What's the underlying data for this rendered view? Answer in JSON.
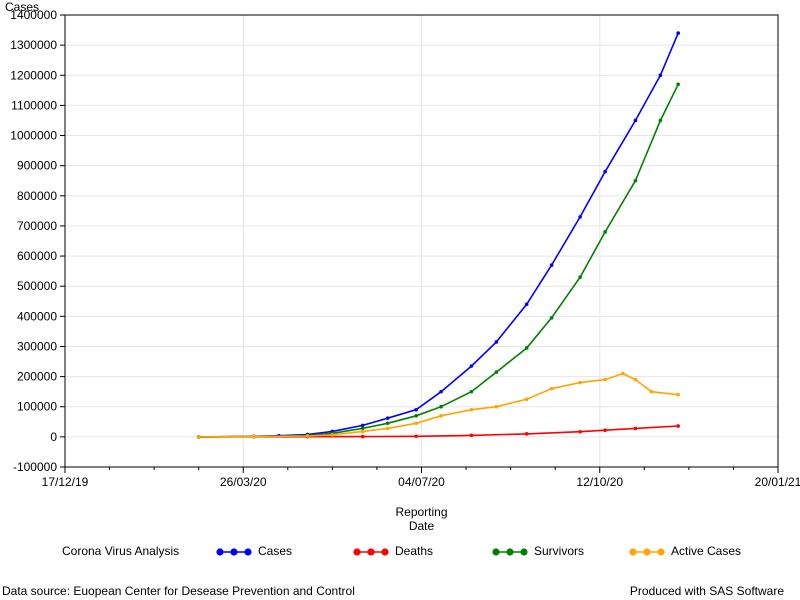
{
  "chart_data": {
    "type": "line",
    "ylabel": "Cases",
    "xlabel_line1": "Reporting",
    "xlabel_line2": "Date",
    "ylim": [
      -100000,
      1400000
    ],
    "yticks": [
      -100000,
      0,
      100000,
      200000,
      300000,
      400000,
      500000,
      600000,
      700000,
      800000,
      900000,
      1000000,
      1100000,
      1200000,
      1300000,
      1400000
    ],
    "xlim": [
      "2019-12-17",
      "2021-01-20"
    ],
    "xticks": [
      "17/12/19",
      "26/03/20",
      "04/07/20",
      "12/10/20",
      "20/01/21"
    ],
    "grid": true,
    "legend_title": "Corona Virus Analysis",
    "legend_position": "bottom",
    "series": [
      {
        "name": "Cases",
        "color": "#0000ff",
        "x": [
          "2020-03-01",
          "2020-04-01",
          "2020-04-15",
          "2020-05-01",
          "2020-05-15",
          "2020-06-01",
          "2020-06-15",
          "2020-07-01",
          "2020-07-15",
          "2020-08-01",
          "2020-08-15",
          "2020-09-01",
          "2020-09-15",
          "2020-10-01",
          "2020-10-15",
          "2020-11-01",
          "2020-11-15",
          "2020-11-25"
        ],
        "y": [
          0,
          2000,
          4000,
          8000,
          18000,
          38000,
          62000,
          90000,
          150000,
          235000,
          315000,
          440000,
          570000,
          730000,
          880000,
          1050000,
          1200000,
          1340000
        ]
      },
      {
        "name": "Deaths",
        "color": "#ff0000",
        "x": [
          "2020-03-01",
          "2020-04-01",
          "2020-05-01",
          "2020-06-01",
          "2020-07-01",
          "2020-08-01",
          "2020-09-01",
          "2020-10-01",
          "2020-10-15",
          "2020-11-01",
          "2020-11-25"
        ],
        "y": [
          0,
          200,
          400,
          900,
          2000,
          5000,
          10000,
          17000,
          22000,
          28000,
          36000
        ]
      },
      {
        "name": "Survivors",
        "color": "#008000",
        "x": [
          "2020-03-01",
          "2020-04-01",
          "2020-05-01",
          "2020-05-15",
          "2020-06-01",
          "2020-06-15",
          "2020-07-01",
          "2020-07-15",
          "2020-08-01",
          "2020-08-15",
          "2020-09-01",
          "2020-09-15",
          "2020-10-01",
          "2020-10-15",
          "2020-11-01",
          "2020-11-15",
          "2020-11-25"
        ],
        "y": [
          0,
          1000,
          5000,
          12000,
          28000,
          45000,
          70000,
          100000,
          150000,
          215000,
          295000,
          395000,
          530000,
          680000,
          850000,
          1050000,
          1170000
        ]
      },
      {
        "name": "Active Cases",
        "color": "#ffa500",
        "x": [
          "2020-03-01",
          "2020-04-01",
          "2020-05-01",
          "2020-05-15",
          "2020-06-01",
          "2020-06-15",
          "2020-07-01",
          "2020-07-15",
          "2020-08-01",
          "2020-08-15",
          "2020-09-01",
          "2020-09-15",
          "2020-10-01",
          "2020-10-15",
          "2020-10-25",
          "2020-11-01",
          "2020-11-10",
          "2020-11-25"
        ],
        "y": [
          0,
          1000,
          3000,
          7000,
          18000,
          28000,
          45000,
          70000,
          90000,
          100000,
          125000,
          160000,
          180000,
          190000,
          210000,
          190000,
          150000,
          140000
        ]
      }
    ]
  },
  "footer": {
    "source": "Data source: Euopean Center for Desease Prevention and Control",
    "produced": "Produced with SAS Software"
  }
}
